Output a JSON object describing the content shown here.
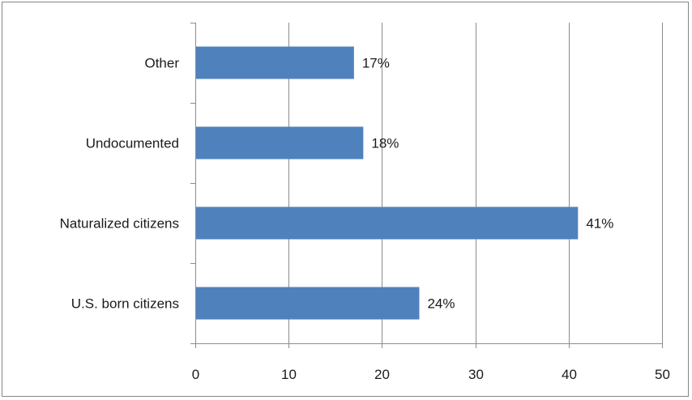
{
  "chart_data": {
    "type": "bar",
    "orientation": "horizontal",
    "categories": [
      "U.S. born citizens",
      "Naturalized citizens",
      "Undocumented",
      "Other"
    ],
    "values": [
      24,
      41,
      18,
      17
    ],
    "data_labels": [
      "24%",
      "41%",
      "18%",
      "17%"
    ],
    "title": "",
    "xlabel": "",
    "ylabel": "",
    "xlim": [
      0,
      50
    ],
    "x_ticks": [
      0,
      10,
      20,
      30,
      40,
      50
    ],
    "x_tick_labels": [
      "0",
      "10",
      "20",
      "30",
      "40",
      "50"
    ],
    "grid": "vertical major gridlines",
    "legend": "none",
    "bar_color": "#4f81bd",
    "grid_color": "#8c8c8c",
    "axis_color": "#8c8c8c"
  }
}
